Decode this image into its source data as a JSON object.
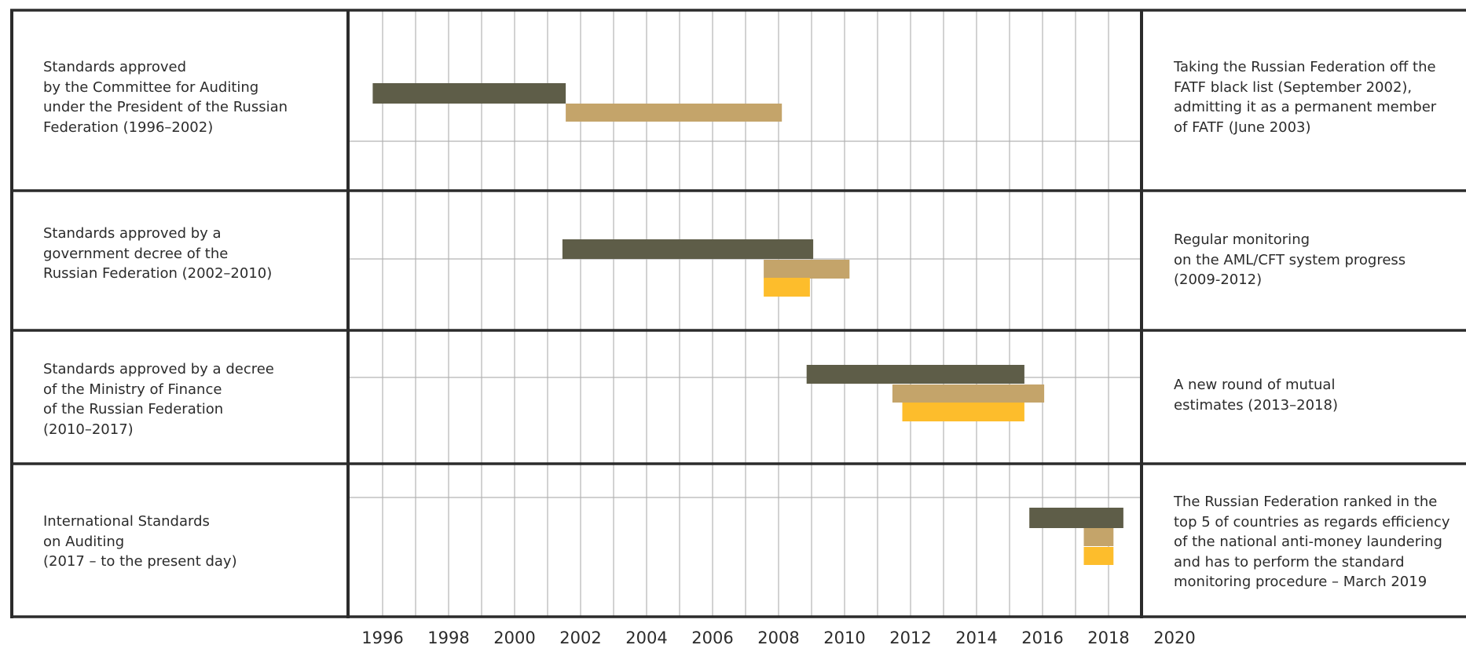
{
  "chart_data": {
    "type": "gantt",
    "x_ticks": [
      "1996",
      "1998",
      "2000",
      "2002",
      "2004",
      "2006",
      "2008",
      "2010",
      "2012",
      "2014",
      "2016",
      "2018",
      "2020"
    ],
    "xlim": [
      1995,
      2019
    ],
    "grid": true,
    "series_colors": {
      "dark": "#5e5d48",
      "tan": "#c4a46a",
      "yellow": "#fdbd2c"
    },
    "rows": [
      {
        "left_label": "Standards approved\nby the Committee for Auditing\nunder the President of the Russian\nFederation (1996–2002)",
        "right_label": "Taking the Russian Federation off the\nFATF black list (September 2002),\nadmitting it as a permanent member\nof FATF (June 2003)",
        "bars": [
          {
            "color": "dark",
            "start": 1995.7,
            "end": 2001.55
          },
          {
            "color": "tan",
            "start": 2001.55,
            "end": 2008.1
          }
        ]
      },
      {
        "left_label": "Standards approved by a\ngovernment decree of the\nRussian Federation (2002–2010)",
        "right_label": "Regular monitoring\non the AML/CFT system progress\n(2009-2012)",
        "bars": [
          {
            "color": "dark",
            "start": 2001.45,
            "end": 2009.05
          },
          {
            "color": "tan",
            "start": 2007.55,
            "end": 2010.15
          },
          {
            "color": "yellow",
            "start": 2007.55,
            "end": 2008.95
          }
        ]
      },
      {
        "left_label": "Standards approved by a decree\nof the Ministry of Finance\nof the Russian Federation\n(2010–2017)",
        "right_label": "A new round of mutual\nestimates (2013–2018)",
        "bars": [
          {
            "color": "dark",
            "start": 2008.85,
            "end": 2015.45
          },
          {
            "color": "tan",
            "start": 2011.45,
            "end": 2016.05
          },
          {
            "color": "yellow",
            "start": 2011.75,
            "end": 2015.45
          }
        ]
      },
      {
        "left_label": "International Standards\non Auditing\n(2017 – to the present day)",
        "right_label": "The Russian Federation ranked in the\ntop 5 of countries as regards efficiency\nof the national anti-money laundering\nand has to perform the standard\nmonitoring procedure  – March 2019",
        "bars": [
          {
            "color": "dark",
            "start": 2015.6,
            "end": 2018.45
          },
          {
            "color": "tan",
            "start": 2017.25,
            "end": 2018.15
          },
          {
            "color": "yellow",
            "start": 2017.25,
            "end": 2018.15
          }
        ]
      }
    ]
  }
}
